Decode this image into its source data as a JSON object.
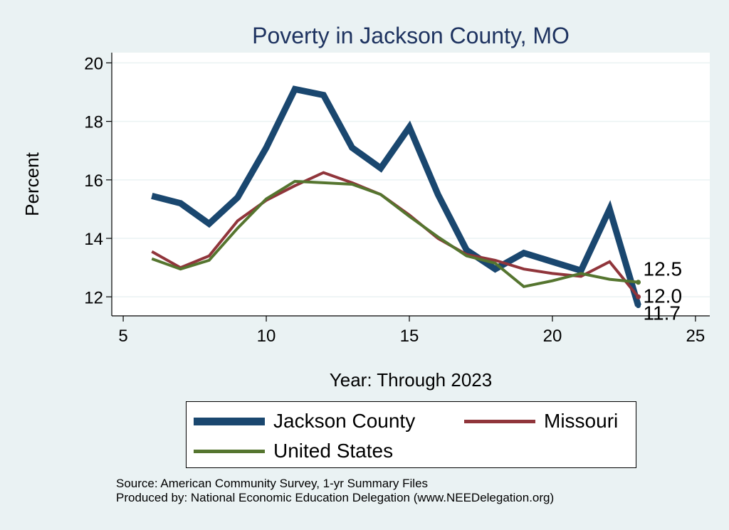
{
  "colors": {
    "page_bg": "#eaf2f3",
    "plot_bg": "#ffffff",
    "grid": "#eaf2f3",
    "title": "#1e3360",
    "jackson": "#1a476f",
    "missouri": "#90353b",
    "us": "#55752f"
  },
  "chart_data": {
    "type": "line",
    "title": "Poverty in Jackson County, MO",
    "xlabel": "Year: Through 2023",
    "ylabel": "Percent",
    "xlim": [
      4.6,
      25.5
    ],
    "ylim": [
      11.35,
      20.35
    ],
    "xticks": [
      5,
      10,
      15,
      20,
      25
    ],
    "yticks": [
      12,
      14,
      16,
      18,
      20
    ],
    "grid": true,
    "legend_position": "bottom",
    "series": [
      {
        "key": "jackson",
        "name": "Jackson County",
        "color": "#1a476f",
        "width": "thick",
        "x": [
          6,
          7,
          8,
          9,
          10,
          11,
          12,
          13,
          14,
          15,
          16,
          17,
          18,
          19,
          20,
          21,
          22,
          23
        ],
        "values": [
          15.45,
          15.2,
          14.5,
          15.4,
          17.1,
          19.1,
          18.9,
          17.1,
          16.4,
          17.8,
          15.5,
          13.6,
          12.95,
          13.5,
          13.2,
          12.9,
          15.0,
          11.7
        ],
        "end_label": "11.7"
      },
      {
        "key": "missouri",
        "name": "Missouri",
        "color": "#90353b",
        "width": "medium",
        "x": [
          6,
          7,
          8,
          9,
          10,
          11,
          12,
          13,
          14,
          15,
          16,
          17,
          18,
          19,
          20,
          21,
          22,
          23
        ],
        "values": [
          13.55,
          13.0,
          13.4,
          14.6,
          15.3,
          15.8,
          16.25,
          15.9,
          15.5,
          14.8,
          14.0,
          13.45,
          13.25,
          12.95,
          12.8,
          12.7,
          13.2,
          12.0
        ],
        "end_label": "12.0"
      },
      {
        "key": "us",
        "name": "United States",
        "color": "#55752f",
        "width": "medium",
        "x": [
          6,
          7,
          8,
          9,
          10,
          11,
          12,
          13,
          14,
          15,
          16,
          17,
          18,
          19,
          20,
          21,
          22,
          23
        ],
        "values": [
          13.3,
          12.95,
          13.25,
          14.35,
          15.35,
          15.95,
          15.9,
          15.85,
          15.5,
          14.75,
          14.05,
          13.4,
          13.15,
          12.35,
          12.55,
          12.8,
          12.6,
          12.5
        ],
        "end_label": "12.5"
      }
    ]
  },
  "footnote": {
    "source": "Source: American Community Survey, 1-yr Summary Files",
    "produced": "Produced by: National Economic Education Delegation (www.NEEDelegation.org)"
  }
}
